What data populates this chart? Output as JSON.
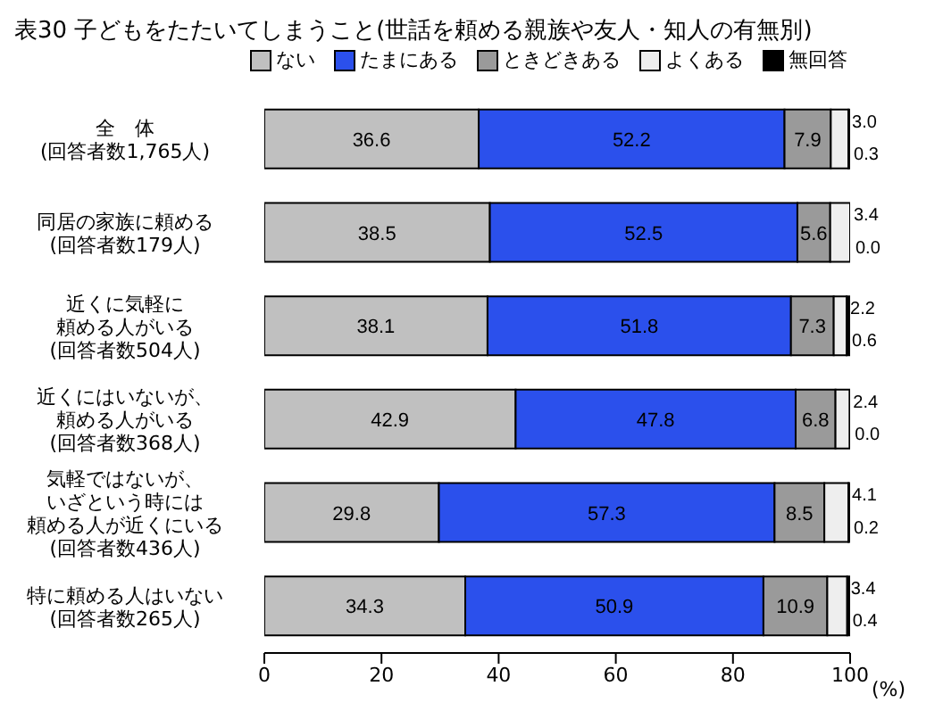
{
  "chart_data": {
    "type": "bar",
    "orientation": "horizontal",
    "stacked": true,
    "title": "表30 子どもをたたいてしまうこと(世話を頼める親族や友人・知人の有無別)",
    "xlabel": "(%)",
    "categories": [
      "全　体(回答者数1,765人)",
      "同居の家族に頼める(回答者数179人)",
      "近くに気軽に頼める人がいる(回答者数504人)",
      "近くにはいないが、頼める人がいる(回答者数368人)",
      "気軽ではないが、いざという時には頼める人が近くにいる(回答者数436人)",
      "特に頼める人はいない(回答者数265人)"
    ],
    "series": [
      {
        "name": "ない",
        "color": "#c0c0c0",
        "values": [
          36.6,
          38.5,
          38.1,
          42.9,
          29.8,
          34.3
        ]
      },
      {
        "name": "たまにある",
        "color": "#2b50ec",
        "values": [
          52.2,
          52.5,
          51.8,
          47.8,
          57.3,
          50.9
        ]
      },
      {
        "name": "ときどきある",
        "color": "#9a9a9a",
        "values": [
          7.9,
          5.6,
          7.3,
          6.8,
          8.5,
          10.9
        ]
      },
      {
        "name": "よくある",
        "color": "#eeeeee",
        "values": [
          3.0,
          3.4,
          2.2,
          2.4,
          4.1,
          3.4
        ],
        "value_labels": [
          "3.0",
          "3.4",
          "2.2",
          "2.4",
          "4.1",
          "3.4"
        ]
      },
      {
        "name": "無回答",
        "color": "#000000",
        "values": [
          0.3,
          0.0,
          0.6,
          0.0,
          0.2,
          0.4
        ],
        "value_labels": [
          "0.3",
          "0.0",
          "0.6",
          "0.0",
          "0.2",
          "0.4"
        ]
      }
    ],
    "xlim": [
      0,
      100
    ],
    "xticks": [
      0,
      20,
      40,
      60,
      80,
      100
    ],
    "data_labels": true,
    "legend": "top",
    "grid": false
  }
}
